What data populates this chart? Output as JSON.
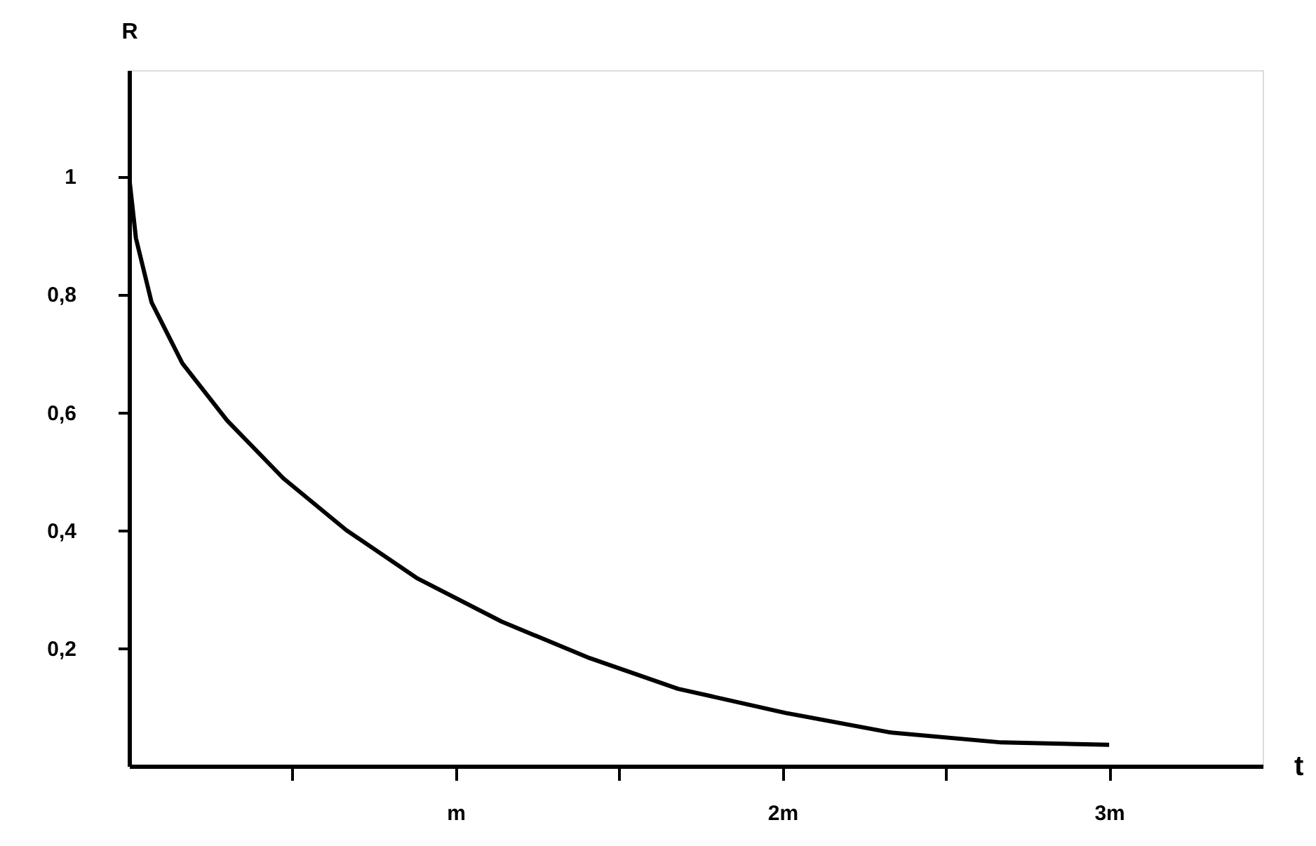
{
  "chart_data": {
    "type": "line",
    "xlabel": "t",
    "ylabel": "R",
    "color": "#000000",
    "line_style": "solid",
    "x": [
      0,
      0.021,
      0.069,
      0.163,
      0.3,
      0.472,
      0.665,
      0.88,
      1.14,
      1.41,
      1.68,
      2.01,
      2.33,
      2.67,
      3.0
    ],
    "values": [
      1.0,
      0.895,
      0.786,
      0.683,
      0.586,
      0.488,
      0.4,
      0.319,
      0.245,
      0.183,
      0.131,
      0.09,
      0.057,
      0.04,
      0.036
    ],
    "xlim": [
      0,
      3.47
    ],
    "ylim": [
      0,
      1.18
    ],
    "xticks": [
      {
        "value": 0.5,
        "label": null
      },
      {
        "value": 1,
        "label": "m"
      },
      {
        "value": 1.5,
        "label": null
      },
      {
        "value": 2,
        "label": "2m"
      },
      {
        "value": 2.5,
        "label": null
      },
      {
        "value": 3,
        "label": "3m"
      }
    ],
    "yticks": [
      {
        "value": 0.2,
        "label": "0,2"
      },
      {
        "value": 0.4,
        "label": "0,4"
      },
      {
        "value": 0.6,
        "label": "0,6"
      },
      {
        "value": 0.8,
        "label": "0,8"
      },
      1
    ]
  }
}
